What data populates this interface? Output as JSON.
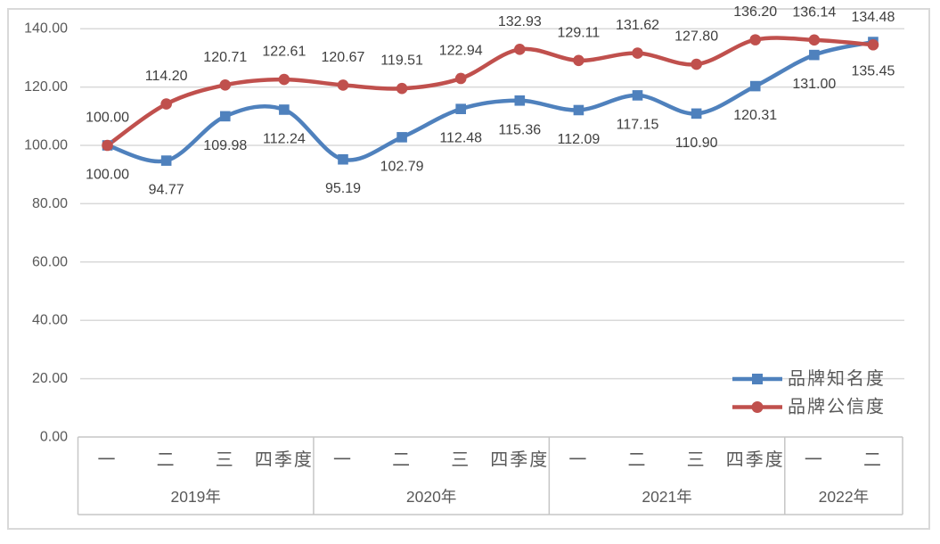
{
  "chart_data": {
    "type": "line",
    "title": "",
    "y_axis": {
      "min": 0,
      "max": 140,
      "step": 20,
      "format_decimals": 2,
      "tick_labels": [
        "0.00",
        "20.00",
        "40.00",
        "60.00",
        "80.00",
        "100.00",
        "120.00",
        "140.00"
      ]
    },
    "x_axis": {
      "groups": [
        {
          "label": "2019年",
          "quarters": [
            "一",
            "二",
            "三",
            "四季度"
          ]
        },
        {
          "label": "2020年",
          "quarters": [
            "一",
            "二",
            "三",
            "四季度"
          ]
        },
        {
          "label": "2021年",
          "quarters": [
            "一",
            "二",
            "三",
            "四季度"
          ]
        },
        {
          "label": "2022年",
          "quarters": [
            "一",
            "二"
          ]
        }
      ]
    },
    "series": [
      {
        "name": "品牌知名度",
        "color": "#4F81BD",
        "marker": "square",
        "label_position": "below",
        "values": [
          100.0,
          94.77,
          109.98,
          112.24,
          95.19,
          102.79,
          112.48,
          115.36,
          112.09,
          117.15,
          110.9,
          120.31,
          131.0,
          135.45
        ]
      },
      {
        "name": "品牌公信度",
        "color": "#C0504D",
        "marker": "circle",
        "label_position": "above",
        "values": [
          100.0,
          114.2,
          120.71,
          122.61,
          120.67,
          119.51,
          122.94,
          132.93,
          129.11,
          131.62,
          127.8,
          136.2,
          136.14,
          134.48
        ]
      }
    ],
    "legend": {
      "position": "middle-right",
      "entries": [
        "品牌知名度",
        "品牌公信度"
      ]
    },
    "grid": true,
    "colors": {
      "background": "#FFFFFF",
      "frame": "#D9D9D9",
      "grid": "#D9D9D9",
      "table_border": "#C6C6C6",
      "axis_text": "#595959",
      "label_text": "#3F3F3F"
    }
  }
}
